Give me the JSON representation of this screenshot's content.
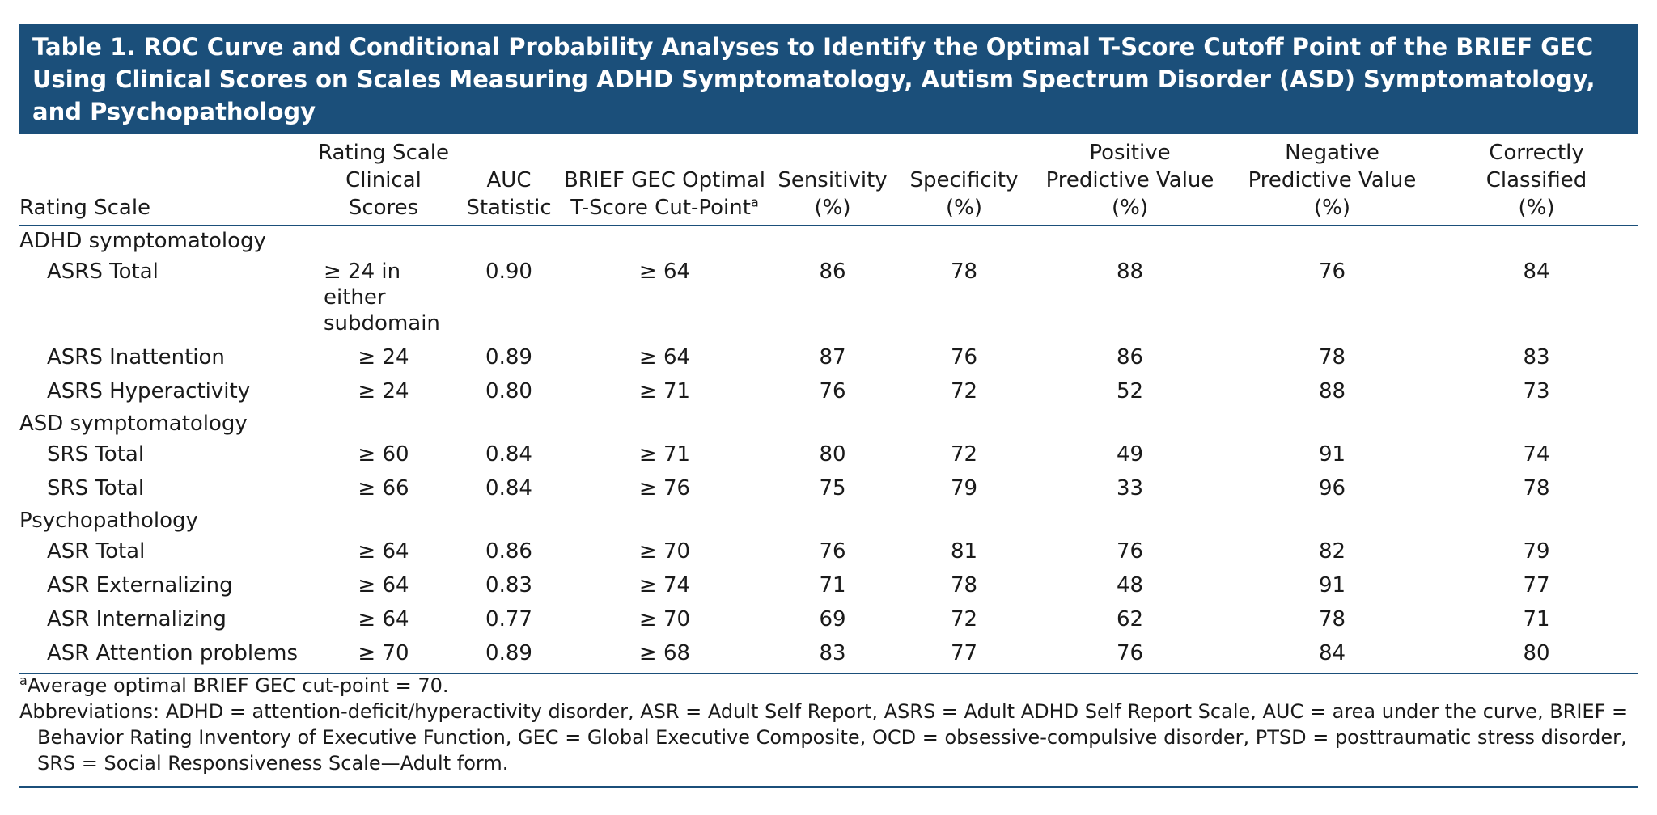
{
  "title": "Table 1. ROC Curve and Conditional Probability Analyses to Identify the Optimal T-Score Cutoff Point of the BRIEF GEC Using Clinical Scores on Scales Measuring ADHD Symptomatology, Autism Spectrum Disorder (ASD) Symptomatology, and Psychopathology",
  "header": {
    "rating_scale": "Rating Scale",
    "clinical_scores": [
      "Rating Scale",
      "Clinical Scores"
    ],
    "auc": [
      "AUC",
      "Statistic"
    ],
    "cut_point": [
      "BRIEF GEC Optimal",
      "T-Score Cut-Point"
    ],
    "cut_point_footnote": "a",
    "sensitivity": [
      "Sensitivity",
      "(%)"
    ],
    "specificity": [
      "Specificity",
      "(%)"
    ],
    "ppv": [
      "Positive",
      "Predictive Value",
      "(%)"
    ],
    "npv": [
      "Negative",
      "Predictive Value",
      "(%)"
    ],
    "correct": [
      "Correctly",
      "Classified",
      "(%)"
    ]
  },
  "sections": [
    {
      "label": "ADHD symptomatology",
      "rows": [
        {
          "scale": "ASRS Total",
          "clinical": "≥ 24 in either subdomain",
          "auc": "0.90",
          "cut": "≥ 64",
          "sens": "86",
          "spec": "78",
          "ppv": "88",
          "npv": "76",
          "correct": "84"
        },
        {
          "scale": "ASRS Inattention",
          "clinical": "≥ 24",
          "auc": "0.89",
          "cut": "≥ 64",
          "sens": "87",
          "spec": "76",
          "ppv": "86",
          "npv": "78",
          "correct": "83"
        },
        {
          "scale": "ASRS Hyperactivity",
          "clinical": "≥ 24",
          "auc": "0.80",
          "cut": "≥ 71",
          "sens": "76",
          "spec": "72",
          "ppv": "52",
          "npv": "88",
          "correct": "73"
        }
      ]
    },
    {
      "label": "ASD symptomatology",
      "rows": [
        {
          "scale": "SRS Total",
          "clinical": "≥ 60",
          "auc": "0.84",
          "cut": "≥ 71",
          "sens": "80",
          "spec": "72",
          "ppv": "49",
          "npv": "91",
          "correct": "74"
        },
        {
          "scale": "SRS Total",
          "clinical": "≥ 66",
          "auc": "0.84",
          "cut": "≥ 76",
          "sens": "75",
          "spec": "79",
          "ppv": "33",
          "npv": "96",
          "correct": "78"
        }
      ]
    },
    {
      "label": "Psychopathology",
      "rows": [
        {
          "scale": "ASR Total",
          "clinical": "≥ 64",
          "auc": "0.86",
          "cut": "≥ 70",
          "sens": "76",
          "spec": "81",
          "ppv": "76",
          "npv": "82",
          "correct": "79"
        },
        {
          "scale": "ASR Externalizing",
          "clinical": "≥ 64",
          "auc": "0.83",
          "cut": "≥ 74",
          "sens": "71",
          "spec": "78",
          "ppv": "48",
          "npv": "91",
          "correct": "77"
        },
        {
          "scale": "ASR Internalizing",
          "clinical": "≥ 64",
          "auc": "0.77",
          "cut": "≥ 70",
          "sens": "69",
          "spec": "72",
          "ppv": "62",
          "npv": "78",
          "correct": "71"
        },
        {
          "scale": "ASR Attention problems",
          "clinical": "≥ 70",
          "auc": "0.89",
          "cut": "≥ 68",
          "sens": "83",
          "spec": "77",
          "ppv": "76",
          "npv": "84",
          "correct": "80"
        }
      ]
    }
  ],
  "notes": {
    "footnote_marker": "a",
    "footnote_text": "Average optimal BRIEF GEC cut-point = 70.",
    "abbreviations": "Abbreviations: ADHD = attention-deficit/hyperactivity disorder, ASR = Adult Self Report, ASRS = Adult ADHD Self Report Scale, AUC = area under the curve, BRIEF = Behavior Rating Inventory of Executive Function, GEC = Global Executive Composite, OCD = obsessive-compulsive disorder, PTSD = posttraumatic stress disorder, SRS = Social Responsiveness Scale—Adult form."
  },
  "colors": {
    "title_bg": "#1b4f7a",
    "title_text": "#ffffff",
    "rule": "#1b4f7a"
  }
}
